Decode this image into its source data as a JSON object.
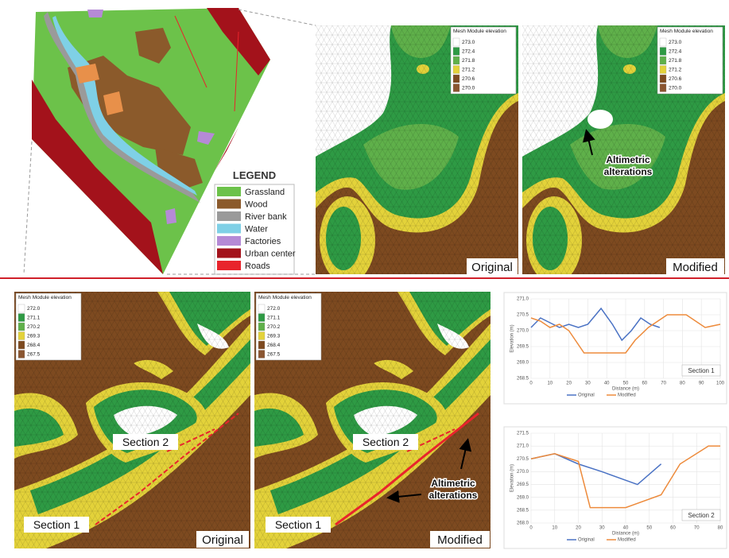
{
  "land_use_legend": {
    "title": "LEGEND",
    "items": [
      {
        "label": "Grassland",
        "color": "#6cc24a"
      },
      {
        "label": "Wood",
        "color": "#8b5a2b"
      },
      {
        "label": "River bank",
        "color": "#9a9a9a"
      },
      {
        "label": "Water",
        "color": "#7fd0e6"
      },
      {
        "label": "Factories",
        "color": "#b58ad6"
      },
      {
        "label": "Urban center",
        "color": "#a3121b"
      },
      {
        "label": "Roads",
        "color": "#e8242c"
      }
    ]
  },
  "top_elevation_legend": {
    "title": "Mesh Module elevation",
    "values": [
      "273.0",
      "272.4",
      "271.8",
      "271.2",
      "270.6",
      "270.0"
    ]
  },
  "bottom_elevation_legend": {
    "title": "Mesh Module elevation",
    "values": [
      "272.0",
      "271.1",
      "270.2",
      "269.3",
      "268.4",
      "267.5"
    ]
  },
  "panel_labels": {
    "original": "Original",
    "modified": "Modified"
  },
  "annotation": {
    "lines": [
      "Altimetric",
      "alterations"
    ]
  },
  "chart_data": [
    {
      "type": "line",
      "title": "Section 1",
      "x_label": "Distance (m)",
      "y_label": "Elevation (m)",
      "xlim": [
        0,
        100
      ],
      "xticks": [
        0,
        10,
        20,
        30,
        40,
        50,
        60,
        70,
        80,
        90,
        100
      ],
      "ylim": [
        268.5,
        271.0
      ],
      "yticks": [
        {
          "value": 268.5,
          "label": "268.5"
        },
        {
          "value": 269,
          "label": "269.0"
        },
        {
          "value": 269.5,
          "label": "269.5"
        },
        {
          "value": 270,
          "label": "270.0"
        },
        {
          "value": 270.5,
          "label": "270.5"
        },
        {
          "value": 271,
          "label": "271.0"
        }
      ],
      "grid": true,
      "series": [
        {
          "name": "Original",
          "color": "#4a72c4",
          "x": [
            0,
            5,
            15,
            20,
            25,
            30,
            37,
            43,
            48,
            53,
            58,
            63,
            68
          ],
          "values": [
            270.1,
            270.4,
            270.1,
            270.2,
            270.1,
            270.2,
            270.7,
            270.2,
            269.7,
            270.0,
            270.4,
            270.2,
            270.1
          ]
        },
        {
          "name": "Modified",
          "color": "#ed8b3c",
          "x": [
            0,
            5,
            10,
            15,
            20,
            28,
            35,
            50,
            55,
            62,
            72,
            82,
            92,
            100
          ],
          "values": [
            270.4,
            270.3,
            270.1,
            270.2,
            270.0,
            269.3,
            269.3,
            269.3,
            269.7,
            270.1,
            270.5,
            270.5,
            270.1,
            270.2
          ]
        }
      ]
    },
    {
      "type": "line",
      "title": "Section 2",
      "x_label": "Distance (m)",
      "y_label": "Elevation (m)",
      "xlim": [
        0,
        80
      ],
      "xticks": [
        0,
        10,
        20,
        30,
        40,
        50,
        60,
        70,
        80
      ],
      "ylim": [
        268.0,
        271.5
      ],
      "yticks": [
        {
          "value": 268,
          "label": "268.0"
        },
        {
          "value": 268.5,
          "label": "268.5"
        },
        {
          "value": 269,
          "label": "269.0"
        },
        {
          "value": 269.5,
          "label": "269.5"
        },
        {
          "value": 270,
          "label": "270.0"
        },
        {
          "value": 270.5,
          "label": "270.5"
        },
        {
          "value": 271,
          "label": "271.0"
        },
        {
          "value": 271.5,
          "label": "271.5"
        }
      ],
      "grid": true,
      "series": [
        {
          "name": "Original",
          "color": "#4a72c4",
          "x": [
            0,
            10,
            20,
            30,
            45,
            55
          ],
          "values": [
            270.5,
            270.7,
            270.3,
            270.0,
            269.5,
            270.3
          ]
        },
        {
          "name": "Modified",
          "color": "#ed8b3c",
          "x": [
            0,
            10,
            20,
            25,
            40,
            55,
            63,
            75,
            80
          ],
          "values": [
            270.5,
            270.7,
            270.4,
            268.6,
            268.6,
            269.1,
            270.3,
            271.0,
            271.0
          ]
        }
      ]
    }
  ]
}
